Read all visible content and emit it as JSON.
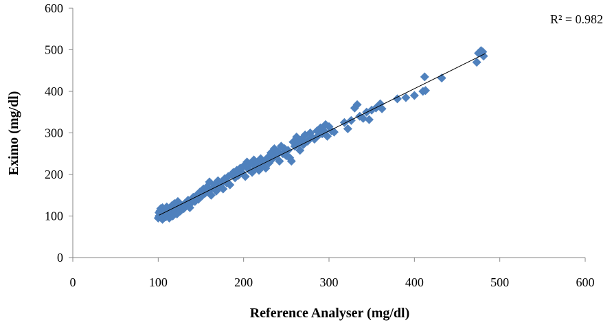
{
  "chart_data": {
    "type": "scatter",
    "title": "",
    "xlabel": "Reference Analyser (mg/dl)",
    "ylabel": "Eximo (mg/dl)",
    "xlim": [
      0,
      600
    ],
    "ylim": [
      0,
      600
    ],
    "xticks": [
      0,
      100,
      200,
      300,
      400,
      500,
      600
    ],
    "yticks": [
      0,
      100,
      200,
      300,
      400,
      500,
      600
    ],
    "grid": false,
    "annotation": {
      "r2_label": "R² = 0.982"
    },
    "marker_color": "#4F81BD",
    "trendline": {
      "type": "linear",
      "x": [
        101,
        483
      ],
      "y": [
        102,
        491
      ],
      "color": "#000000"
    },
    "series": [
      {
        "points": [
          [
            100,
            95
          ],
          [
            101,
            100
          ],
          [
            101,
            108
          ],
          [
            102,
            112
          ],
          [
            103,
            98
          ],
          [
            103,
            118
          ],
          [
            104,
            105
          ],
          [
            105,
            92
          ],
          [
            105,
            120
          ],
          [
            106,
            110
          ],
          [
            107,
            102
          ],
          [
            108,
            115
          ],
          [
            109,
            98
          ],
          [
            110,
            122
          ],
          [
            111,
            105
          ],
          [
            112,
            112
          ],
          [
            113,
            95
          ],
          [
            114,
            118
          ],
          [
            115,
            108
          ],
          [
            116,
            125
          ],
          [
            117,
            100
          ],
          [
            118,
            115
          ],
          [
            119,
            130
          ],
          [
            120,
            110
          ],
          [
            121,
            120
          ],
          [
            122,
            105
          ],
          [
            123,
            135
          ],
          [
            124,
            118
          ],
          [
            125,
            128
          ],
          [
            126,
            112
          ],
          [
            128,
            122
          ],
          [
            130,
            118
          ],
          [
            131,
            130
          ],
          [
            133,
            125
          ],
          [
            135,
            138
          ],
          [
            137,
            120
          ],
          [
            139,
            132
          ],
          [
            141,
            145
          ],
          [
            143,
            135
          ],
          [
            145,
            150
          ],
          [
            147,
            140
          ],
          [
            149,
            158
          ],
          [
            151,
            148
          ],
          [
            153,
            165
          ],
          [
            155,
            155
          ],
          [
            157,
            170
          ],
          [
            159,
            160
          ],
          [
            160,
            182
          ],
          [
            162,
            150
          ],
          [
            164,
            168
          ],
          [
            166,
            175
          ],
          [
            168,
            160
          ],
          [
            170,
            185
          ],
          [
            172,
            172
          ],
          [
            174,
            178
          ],
          [
            176,
            165
          ],
          [
            178,
            190
          ],
          [
            180,
            180
          ],
          [
            182,
            195
          ],
          [
            184,
            175
          ],
          [
            186,
            200
          ],
          [
            188,
            205
          ],
          [
            190,
            192
          ],
          [
            192,
            210
          ],
          [
            194,
            198
          ],
          [
            196,
            215
          ],
          [
            198,
            205
          ],
          [
            200,
            220
          ],
          [
            202,
            195
          ],
          [
            204,
            230
          ],
          [
            206,
            212
          ],
          [
            208,
            225
          ],
          [
            210,
            205
          ],
          [
            212,
            235
          ],
          [
            214,
            218
          ],
          [
            216,
            228
          ],
          [
            218,
            210
          ],
          [
            220,
            238
          ],
          [
            222,
            222
          ],
          [
            224,
            232
          ],
          [
            226,
            215
          ],
          [
            228,
            240
          ],
          [
            230,
            228
          ],
          [
            232,
            252
          ],
          [
            234,
            238
          ],
          [
            236,
            262
          ],
          [
            238,
            245
          ],
          [
            240,
            255
          ],
          [
            242,
            232
          ],
          [
            244,
            268
          ],
          [
            246,
            250
          ],
          [
            248,
            262
          ],
          [
            250,
            245
          ],
          [
            252,
            258
          ],
          [
            254,
            240
          ],
          [
            256,
            232
          ],
          [
            258,
            278
          ],
          [
            260,
            268
          ],
          [
            262,
            290
          ],
          [
            264,
            275
          ],
          [
            266,
            258
          ],
          [
            268,
            285
          ],
          [
            270,
            272
          ],
          [
            272,
            295
          ],
          [
            275,
            280
          ],
          [
            278,
            300
          ],
          [
            280,
            290
          ],
          [
            283,
            285
          ],
          [
            286,
            305
          ],
          [
            288,
            295
          ],
          [
            290,
            312
          ],
          [
            292,
            298
          ],
          [
            294,
            305
          ],
          [
            296,
            320
          ],
          [
            298,
            292
          ],
          [
            300,
            315
          ],
          [
            303,
            305
          ],
          [
            306,
            302
          ],
          [
            318,
            325
          ],
          [
            322,
            310
          ],
          [
            326,
            330
          ],
          [
            330,
            360
          ],
          [
            333,
            368
          ],
          [
            336,
            340
          ],
          [
            340,
            335
          ],
          [
            344,
            350
          ],
          [
            347,
            332
          ],
          [
            350,
            355
          ],
          [
            355,
            360
          ],
          [
            360,
            370
          ],
          [
            362,
            358
          ],
          [
            380,
            382
          ],
          [
            390,
            385
          ],
          [
            400,
            390
          ],
          [
            410,
            400
          ],
          [
            412,
            435
          ],
          [
            413,
            402
          ],
          [
            432,
            432
          ],
          [
            473,
            470
          ],
          [
            475,
            492
          ],
          [
            478,
            498
          ],
          [
            480,
            495
          ],
          [
            481,
            485
          ]
        ]
      }
    ]
  }
}
